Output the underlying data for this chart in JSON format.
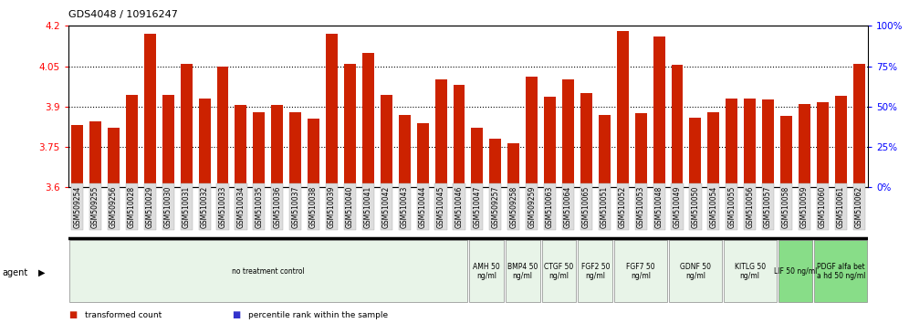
{
  "title": "GDS4048 / 10916247",
  "gsm_labels": [
    "GSM509254",
    "GSM509255",
    "GSM509256",
    "GSM510028",
    "GSM510029",
    "GSM510030",
    "GSM510031",
    "GSM510032",
    "GSM510033",
    "GSM510034",
    "GSM510035",
    "GSM510036",
    "GSM510037",
    "GSM510038",
    "GSM510039",
    "GSM510040",
    "GSM510041",
    "GSM510042",
    "GSM510043",
    "GSM510044",
    "GSM510045",
    "GSM510046",
    "GSM510047",
    "GSM509257",
    "GSM509258",
    "GSM509259",
    "GSM510063",
    "GSM510064",
    "GSM510065",
    "GSM510051",
    "GSM510052",
    "GSM510053",
    "GSM510048",
    "GSM510049",
    "GSM510050",
    "GSM510054",
    "GSM510055",
    "GSM510056",
    "GSM510057",
    "GSM510058",
    "GSM510059",
    "GSM510060",
    "GSM510061",
    "GSM510062"
  ],
  "red_values": [
    3.83,
    3.845,
    3.82,
    3.945,
    4.17,
    3.945,
    4.06,
    3.93,
    4.05,
    3.905,
    3.88,
    3.905,
    3.88,
    3.855,
    4.17,
    4.06,
    4.1,
    3.945,
    3.87,
    3.84,
    4.0,
    3.98,
    3.82,
    3.78,
    3.765,
    4.01,
    3.935,
    4.0,
    3.95,
    3.87,
    4.18,
    3.875,
    4.16,
    4.055,
    3.86,
    3.88,
    3.93,
    3.93,
    3.925,
    3.865,
    3.91,
    3.915,
    3.94,
    4.06
  ],
  "blue_values": [
    2,
    3,
    1,
    5,
    6,
    5,
    6,
    4,
    5,
    4,
    3,
    4,
    3,
    2,
    6,
    5,
    6,
    5,
    3,
    3,
    5,
    4,
    2,
    2,
    1,
    5,
    4,
    5,
    4,
    3,
    6,
    3,
    6,
    5,
    3,
    3,
    4,
    4,
    4,
    3,
    4,
    4,
    4,
    5
  ],
  "ymin": 3.6,
  "ymax": 4.2,
  "yticks_left": [
    3.6,
    3.75,
    3.9,
    4.05,
    4.2
  ],
  "yticks_right": [
    0,
    25,
    50,
    75,
    100
  ],
  "dotted_lines": [
    3.75,
    3.9,
    4.05
  ],
  "bar_color": "#cc2200",
  "blue_color": "#3333cc",
  "agent_groups": [
    {
      "label": "no treatment control",
      "count": 22,
      "color": "#e8f4e8",
      "dark": false
    },
    {
      "label": "AMH 50\nng/ml",
      "count": 2,
      "color": "#e8f4e8",
      "dark": false
    },
    {
      "label": "BMP4 50\nng/ml",
      "count": 2,
      "color": "#e8f4e8",
      "dark": false
    },
    {
      "label": "CTGF 50\nng/ml",
      "count": 2,
      "color": "#e8f4e8",
      "dark": false
    },
    {
      "label": "FGF2 50\nng/ml",
      "count": 2,
      "color": "#e8f4e8",
      "dark": false
    },
    {
      "label": "FGF7 50\nng/ml",
      "count": 3,
      "color": "#e8f4e8",
      "dark": false
    },
    {
      "label": "GDNF 50\nng/ml",
      "count": 3,
      "color": "#e8f4e8",
      "dark": false
    },
    {
      "label": "KITLG 50\nng/ml",
      "count": 3,
      "color": "#e8f4e8",
      "dark": false
    },
    {
      "label": "LIF 50 ng/ml",
      "count": 2,
      "color": "#88dd88",
      "dark": false
    },
    {
      "label": "PDGF alfa bet\na hd 50 ng/ml",
      "count": 3,
      "color": "#88dd88",
      "dark": false
    }
  ],
  "bar_width": 0.65,
  "legend_items": [
    {
      "label": "transformed count",
      "color": "#cc2200"
    },
    {
      "label": "percentile rank within the sample",
      "color": "#3333cc"
    }
  ]
}
